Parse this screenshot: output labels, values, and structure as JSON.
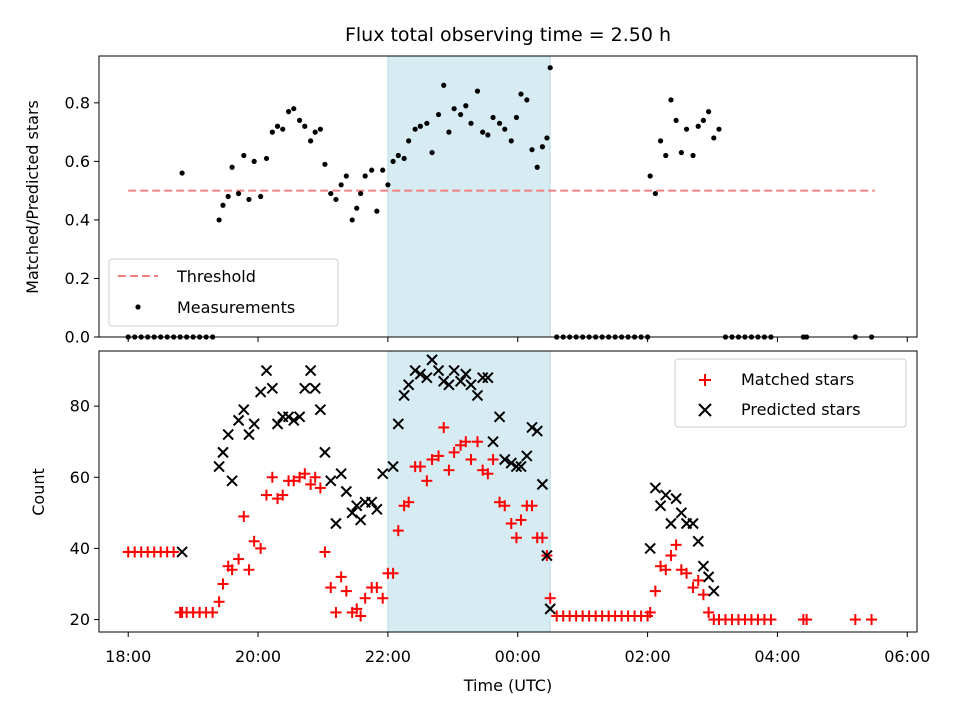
{
  "chart_data": [
    {
      "type": "scatter",
      "panel": "top",
      "title": "Flux total observing time = 2.50 h",
      "xlabel": "",
      "ylabel": "Matched/Predicted stars",
      "xlim": [
        17.55,
        30.15
      ],
      "ylim": [
        0.0,
        0.96
      ],
      "yticks": [
        0.0,
        0.2,
        0.4,
        0.6,
        0.8
      ],
      "ytick_labels": [
        "0.0",
        "0.2",
        "0.4",
        "0.6",
        "0.8"
      ],
      "xticks": [
        18,
        20,
        22,
        24,
        26,
        28,
        30
      ],
      "shaded_span": [
        22.0,
        24.5
      ],
      "shade_color": "#add8e6",
      "threshold": {
        "name": "Threshold",
        "value": 0.5,
        "x_range": [
          18.0,
          29.5
        ],
        "color": "#f08080",
        "style": "dashed"
      },
      "legend": {
        "placement": "lower left",
        "entries": [
          "Threshold",
          "Measurements"
        ]
      },
      "series": [
        {
          "name": "Measurements",
          "color": "#000000",
          "marker": "dot",
          "x": [
            18.0,
            18.1,
            18.2,
            18.3,
            18.4,
            18.5,
            18.6,
            18.7,
            18.8,
            18.83,
            18.9,
            19.0,
            19.1,
            19.2,
            19.3,
            19.4,
            19.46,
            19.54,
            19.6,
            19.7,
            19.78,
            19.86,
            19.94,
            20.04,
            20.13,
            20.22,
            20.3,
            20.38,
            20.47,
            20.55,
            20.64,
            20.72,
            20.81,
            20.88,
            20.96,
            21.03,
            21.12,
            21.2,
            21.28,
            21.36,
            21.45,
            21.52,
            21.58,
            21.65,
            21.75,
            21.83,
            21.92,
            22.0,
            22.08,
            22.16,
            22.25,
            22.32,
            22.42,
            22.5,
            22.6,
            22.68,
            22.78,
            22.86,
            22.94,
            23.02,
            23.12,
            23.2,
            23.28,
            23.38,
            23.46,
            23.54,
            23.62,
            23.72,
            23.8,
            23.9,
            23.98,
            24.05,
            24.14,
            24.22,
            24.3,
            24.38,
            24.45,
            24.5,
            24.6,
            24.7,
            24.8,
            24.9,
            25.0,
            25.1,
            25.2,
            25.3,
            25.4,
            25.5,
            25.6,
            25.7,
            25.8,
            25.9,
            26.0,
            26.04,
            26.12,
            26.2,
            26.28,
            26.36,
            26.44,
            26.52,
            26.6,
            26.7,
            26.78,
            26.86,
            26.94,
            27.02,
            27.1,
            27.2,
            27.3,
            27.4,
            27.5,
            27.6,
            27.7,
            27.8,
            27.9,
            28.4,
            28.45,
            29.2,
            29.45
          ],
          "y": [
            0.0,
            0.0,
            0.0,
            0.0,
            0.0,
            0.0,
            0.0,
            0.0,
            0.0,
            0.56,
            0.0,
            0.0,
            0.0,
            0.0,
            0.0,
            0.4,
            0.45,
            0.48,
            0.58,
            0.49,
            0.62,
            0.47,
            0.6,
            0.48,
            0.61,
            0.7,
            0.72,
            0.71,
            0.77,
            0.78,
            0.74,
            0.72,
            0.67,
            0.7,
            0.71,
            0.59,
            0.49,
            0.47,
            0.52,
            0.55,
            0.4,
            0.44,
            0.49,
            0.55,
            0.57,
            0.43,
            0.57,
            0.52,
            0.6,
            0.62,
            0.61,
            0.67,
            0.71,
            0.72,
            0.73,
            0.63,
            0.76,
            0.86,
            0.7,
            0.78,
            0.76,
            0.79,
            0.73,
            0.84,
            0.7,
            0.69,
            0.75,
            0.73,
            0.71,
            0.67,
            0.75,
            0.83,
            0.81,
            0.64,
            0.58,
            0.65,
            0.68,
            0.92,
            0.0,
            0.0,
            0.0,
            0.0,
            0.0,
            0.0,
            0.0,
            0.0,
            0.0,
            0.0,
            0.0,
            0.0,
            0.0,
            0.0,
            0.0,
            0.55,
            0.49,
            0.67,
            0.62,
            0.81,
            0.74,
            0.63,
            0.71,
            0.62,
            0.72,
            0.74,
            0.77,
            0.68,
            0.71,
            0.0,
            0.0,
            0.0,
            0.0,
            0.0,
            0.0,
            0.0,
            0.0,
            0.0,
            0.0,
            0.0,
            0.0
          ]
        }
      ]
    },
    {
      "type": "scatter",
      "panel": "bottom",
      "title": "",
      "xlabel": "Time (UTC)",
      "ylabel": "Count",
      "xlim": [
        17.55,
        30.15
      ],
      "ylim": [
        16.5,
        95.5
      ],
      "yticks": [
        20,
        40,
        60,
        80
      ],
      "ytick_labels": [
        "20",
        "40",
        "60",
        "80"
      ],
      "xticks": [
        18,
        20,
        22,
        24,
        26,
        28,
        30
      ],
      "xtick_labels": [
        "18:00",
        "20:00",
        "22:00",
        "00:00",
        "02:00",
        "04:00",
        "06:00"
      ],
      "shaded_span": [
        22.0,
        24.5
      ],
      "shade_color": "#add8e6",
      "legend": {
        "placement": "upper right",
        "entries": [
          "Matched stars",
          "Predicted stars"
        ]
      },
      "series": [
        {
          "name": "Matched stars",
          "color": "#ff0000",
          "marker": "plus",
          "x": [
            18.0,
            18.1,
            18.2,
            18.3,
            18.4,
            18.5,
            18.6,
            18.7,
            18.8,
            18.83,
            18.9,
            19.0,
            19.1,
            19.2,
            19.3,
            19.4,
            19.46,
            19.54,
            19.6,
            19.7,
            19.78,
            19.86,
            19.94,
            20.04,
            20.13,
            20.22,
            20.3,
            20.38,
            20.47,
            20.55,
            20.64,
            20.72,
            20.81,
            20.88,
            20.96,
            21.03,
            21.12,
            21.2,
            21.28,
            21.36,
            21.45,
            21.52,
            21.58,
            21.65,
            21.75,
            21.83,
            21.92,
            22.0,
            22.08,
            22.16,
            22.25,
            22.32,
            22.42,
            22.5,
            22.6,
            22.68,
            22.78,
            22.86,
            22.94,
            23.02,
            23.12,
            23.2,
            23.28,
            23.38,
            23.46,
            23.54,
            23.62,
            23.72,
            23.8,
            23.9,
            23.98,
            24.05,
            24.14,
            24.22,
            24.3,
            24.38,
            24.45,
            24.5,
            24.6,
            24.7,
            24.8,
            24.9,
            25.0,
            25.1,
            25.2,
            25.3,
            25.4,
            25.5,
            25.6,
            25.7,
            25.8,
            25.9,
            26.0,
            26.04,
            26.12,
            26.2,
            26.28,
            26.36,
            26.44,
            26.52,
            26.6,
            26.7,
            26.78,
            26.86,
            26.94,
            27.02,
            27.1,
            27.2,
            27.3,
            27.4,
            27.5,
            27.6,
            27.7,
            27.8,
            27.9,
            28.4,
            28.45,
            29.2,
            29.45
          ],
          "y": [
            39,
            39,
            39,
            39,
            39,
            39,
            39,
            39,
            22,
            22,
            22,
            22,
            22,
            22,
            22,
            25,
            30,
            35,
            34,
            37,
            49,
            34,
            42,
            40,
            55,
            60,
            54,
            55,
            59,
            59,
            60,
            61,
            58,
            60,
            57,
            39,
            29,
            22,
            32,
            28,
            22,
            23,
            21,
            26,
            29,
            29,
            26,
            33,
            33,
            45,
            52,
            53,
            63,
            63,
            59,
            65,
            66,
            74,
            62,
            67,
            69,
            70,
            65,
            70,
            62,
            61,
            65,
            53,
            52,
            47,
            43,
            48,
            52,
            52,
            43,
            43,
            38,
            26,
            21,
            21,
            21,
            21,
            21,
            21,
            21,
            21,
            21,
            21,
            21,
            21,
            21,
            21,
            21,
            22,
            28,
            35,
            34,
            38,
            41,
            34,
            33,
            29,
            31,
            27,
            22,
            20,
            20,
            20,
            20,
            20,
            20,
            20,
            20,
            20,
            20,
            20,
            20,
            20,
            20
          ]
        },
        {
          "name": "Predicted stars",
          "color": "#000000",
          "marker": "x",
          "x": [
            18.83,
            19.4,
            19.46,
            19.54,
            19.6,
            19.7,
            19.78,
            19.86,
            19.94,
            20.04,
            20.13,
            20.22,
            20.3,
            20.38,
            20.47,
            20.55,
            20.64,
            20.72,
            20.81,
            20.88,
            20.96,
            21.03,
            21.12,
            21.2,
            21.28,
            21.36,
            21.45,
            21.52,
            21.58,
            21.65,
            21.75,
            21.83,
            21.92,
            22.08,
            22.16,
            22.25,
            22.32,
            22.42,
            22.5,
            22.6,
            22.68,
            22.78,
            22.86,
            22.94,
            23.02,
            23.12,
            23.2,
            23.28,
            23.38,
            23.46,
            23.54,
            23.62,
            23.72,
            23.8,
            23.9,
            23.98,
            24.05,
            24.14,
            24.22,
            24.3,
            24.38,
            24.45,
            24.5,
            26.04,
            26.12,
            26.2,
            26.28,
            26.36,
            26.44,
            26.52,
            26.6,
            26.7,
            26.78,
            26.86,
            26.94,
            27.02
          ],
          "y": [
            39,
            63,
            67,
            72,
            59,
            76,
            79,
            72,
            75,
            84,
            90,
            85,
            75,
            77,
            77,
            76,
            77,
            85,
            90,
            85,
            79,
            67,
            59,
            47,
            61,
            56,
            50,
            52,
            48,
            53,
            53,
            51,
            61,
            63,
            75,
            83,
            86,
            90,
            89,
            88,
            93,
            90,
            87,
            86,
            90,
            87,
            89,
            86,
            83,
            88,
            88,
            70,
            77,
            65,
            64,
            63,
            63,
            66,
            74,
            73,
            58,
            38,
            23,
            40,
            57,
            52,
            55,
            47,
            54,
            50,
            47,
            47,
            42,
            35,
            32,
            28
          ]
        }
      ]
    }
  ]
}
